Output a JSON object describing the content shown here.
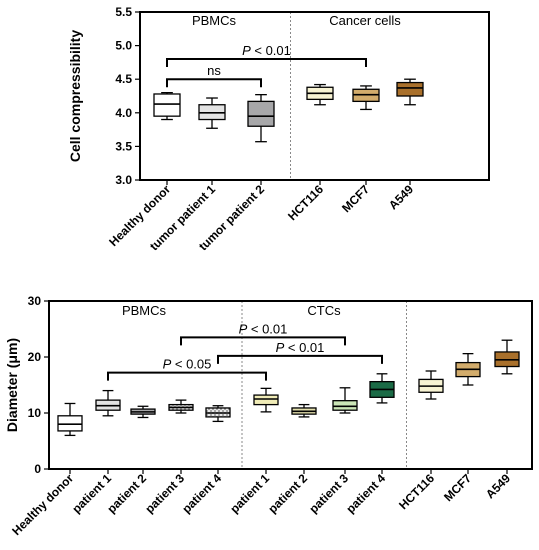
{
  "chart_data": [
    {
      "type": "box",
      "ylabel": "Cell compressibility",
      "ylim": [
        3.0,
        5.5
      ],
      "yticks": [
        "3.0",
        "3.5",
        "4.0",
        "4.5",
        "5.0",
        "5.5"
      ],
      "categories": [
        "Healthy donor",
        "tumor patient 1",
        "tumor patient 2",
        "HCT116",
        "MCF7",
        "A549"
      ],
      "boxes": [
        {
          "min": 3.9,
          "q1": 3.95,
          "median": 4.13,
          "q3": 4.28,
          "max": 4.3,
          "fill": "#ffffff",
          "hatch": false
        },
        {
          "min": 3.77,
          "q1": 3.9,
          "median": 4.0,
          "q3": 4.12,
          "max": 4.22,
          "fill": "#e3e3e3",
          "hatch": false
        },
        {
          "min": 3.57,
          "q1": 3.8,
          "median": 3.95,
          "q3": 4.17,
          "max": 4.27,
          "fill": "#a7a7a9",
          "hatch": false
        },
        {
          "min": 4.12,
          "q1": 4.2,
          "median": 4.29,
          "q3": 4.38,
          "max": 4.42,
          "fill": "#f7f3d3",
          "hatch": false
        },
        {
          "min": 4.05,
          "q1": 4.17,
          "median": 4.27,
          "q3": 4.35,
          "max": 4.4,
          "fill": "#d2ac6c",
          "hatch": false
        },
        {
          "min": 4.12,
          "q1": 4.25,
          "median": 4.37,
          "q3": 4.45,
          "max": 4.5,
          "fill": "#a9702b",
          "hatch": false
        }
      ],
      "groups": [
        {
          "label": "PBMCs",
          "from": 0,
          "to": 2
        },
        {
          "label": "Cancer cells",
          "from": 3,
          "to": 5
        }
      ],
      "separators_after": [
        2
      ],
      "brackets": [
        {
          "from": 0,
          "to": 4,
          "y": 4.8,
          "text": "P < 0.01"
        },
        {
          "from": 0,
          "to": 2,
          "y": 4.5,
          "text": "ns"
        }
      ]
    },
    {
      "type": "box",
      "ylabel": "Diameter (μm)",
      "ylim": [
        0,
        30
      ],
      "yticks": [
        "0",
        "10",
        "20",
        "30"
      ],
      "categories": [
        "Healthy donor",
        "patient 1",
        "patient 2",
        "patient 3",
        "patient 4",
        "patient 1",
        "patient 2",
        "patient 3",
        "patient 4",
        "HCT116",
        "MCF7",
        "A549"
      ],
      "boxes": [
        {
          "min": 6.0,
          "q1": 6.8,
          "median": 8.0,
          "q3": 9.5,
          "max": 11.7,
          "fill": "#ffffff",
          "hatch": false
        },
        {
          "min": 9.5,
          "q1": 10.5,
          "median": 11.3,
          "q3": 12.3,
          "max": 14.0,
          "fill": "#e3e3e3",
          "hatch": false
        },
        {
          "min": 9.2,
          "q1": 9.8,
          "median": 10.2,
          "q3": 10.7,
          "max": 11.2,
          "fill": "#a7a7a9",
          "hatch": false
        },
        {
          "min": 10.0,
          "q1": 10.5,
          "median": 11.0,
          "q3": 11.5,
          "max": 12.3,
          "fill": "#d7d7d7",
          "hatch": true
        },
        {
          "min": 8.5,
          "q1": 9.3,
          "median": 10.0,
          "q3": 10.9,
          "max": 11.3,
          "fill": "#ebebeb",
          "hatch": true
        },
        {
          "min": 10.2,
          "q1": 11.5,
          "median": 12.5,
          "q3": 13.2,
          "max": 14.4,
          "fill": "#f0ecb7",
          "hatch": false
        },
        {
          "min": 9.3,
          "q1": 9.8,
          "median": 10.3,
          "q3": 10.9,
          "max": 11.5,
          "fill": "#e4e0ad",
          "hatch": false
        },
        {
          "min": 10.0,
          "q1": 10.5,
          "median": 11.2,
          "q3": 12.2,
          "max": 14.5,
          "fill": "#cbe6b7",
          "hatch": false
        },
        {
          "min": 11.8,
          "q1": 12.8,
          "median": 14.2,
          "q3": 15.6,
          "max": 17.0,
          "fill": "#1b6b46",
          "hatch": false
        },
        {
          "min": 12.5,
          "q1": 13.7,
          "median": 14.8,
          "q3": 16.0,
          "max": 17.5,
          "fill": "#f7f3d3",
          "hatch": false
        },
        {
          "min": 15.0,
          "q1": 16.5,
          "median": 17.8,
          "q3": 19.0,
          "max": 20.6,
          "fill": "#d2ac6c",
          "hatch": false
        },
        {
          "min": 17.0,
          "q1": 18.3,
          "median": 19.5,
          "q3": 20.9,
          "max": 23.0,
          "fill": "#a9702b",
          "hatch": false
        }
      ],
      "groups": [
        {
          "label": "PBMCs",
          "from": 0,
          "to": 4
        },
        {
          "label": "CTCs",
          "from": 5,
          "to": 8
        }
      ],
      "separators_after": [
        4,
        8
      ],
      "brackets": [
        {
          "from": 3,
          "to": 7,
          "y": 23.5,
          "text": "P < 0.01"
        },
        {
          "from": 4,
          "to": 8,
          "y": 20.2,
          "text": "P < 0.01"
        },
        {
          "from": 1,
          "to": 5,
          "y": 17.2,
          "text": "P < 0.05"
        }
      ]
    }
  ]
}
